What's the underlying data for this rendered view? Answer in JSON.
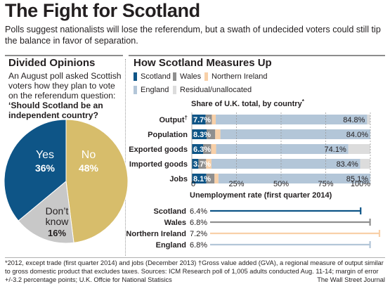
{
  "header": {
    "title": "The Fight for Scotland",
    "subtitle": "Polls suggest nationalists will lose the referendum, but a swath of undecided voters could still tip the balance in favor of separation."
  },
  "left_panel": {
    "heading": "Divided Opinions",
    "intro": "An August poll asked Scottish voters how they plan to vote on the referendum question:",
    "question": "‘Should Scotland be an independent country?",
    "slices": [
      {
        "label": "Yes",
        "value_label": "36%"
      },
      {
        "label": "No",
        "value_label": "48%"
      },
      {
        "label_line1": "Don’t",
        "label_line2": "know",
        "value_label": "16%"
      }
    ]
  },
  "right_panel": {
    "heading": "How Scotland Measures Up",
    "legend": [
      "Scotland",
      "Wales",
      "Northern Ireland",
      "England",
      "Residual/unallocated"
    ]
  },
  "chart_data": [
    {
      "type": "pie",
      "categories": [
        "Yes",
        "No",
        "Don't know"
      ],
      "values": [
        36,
        48,
        16
      ],
      "colors": [
        "#0e5587",
        "#d7bd6b",
        "#c8c8c8"
      ]
    },
    {
      "type": "bar",
      "stacked": true,
      "orientation": "horizontal",
      "title": "Share of U.K. total, by country*",
      "title_marker": "*",
      "categories": [
        "Output",
        "Population",
        "Exported goods",
        "Imported goods",
        "Jobs"
      ],
      "category_markers": [
        "†",
        "",
        "",
        "",
        ""
      ],
      "series": [
        {
          "name": "Scotland",
          "values": [
            7.7,
            8.3,
            6.3,
            3.7,
            8.1
          ],
          "labels": [
            "7.7%",
            "8.3%",
            "6.3%",
            "3.7%",
            "8.1%"
          ],
          "color": "#0e5587"
        },
        {
          "name": "Wales",
          "values": [
            3.5,
            4.8,
            4.5,
            4.3,
            4.6
          ],
          "color": "#8f8f8f"
        },
        {
          "name": "Northern Ireland",
          "values": [
            2.2,
            2.9,
            2.8,
            3.0,
            2.2
          ],
          "color": "#f8d0a8"
        },
        {
          "name": "England",
          "values": [
            84.8,
            84.0,
            74.1,
            83.4,
            85.1
          ],
          "labels": [
            "84.8%",
            "84.0%",
            "74.1%",
            "83.4%",
            "85.1%"
          ],
          "color": "#b3c6d8"
        },
        {
          "name": "Residual/unallocated",
          "values": [
            1.8,
            0.0,
            12.3,
            5.6,
            0.0
          ],
          "color": "#dcdcdc"
        }
      ],
      "xlim": [
        0,
        100
      ],
      "xticks": [
        "0",
        "25%",
        "50%",
        "75%",
        "100%"
      ],
      "grid": true,
      "legend": "top"
    },
    {
      "type": "bar",
      "orientation": "horizontal",
      "title": "Unemployment rate (first quarter 2014)",
      "categories": [
        "Scotland",
        "Wales",
        "Northern Ireland",
        "England"
      ],
      "values": [
        6.4,
        6.8,
        7.2,
        6.8
      ],
      "labels": [
        "6.4%",
        "6.8%",
        "7.2%",
        "6.8%"
      ],
      "colors": [
        "#0e5587",
        "#8f8f8f",
        "#f8d0a8",
        "#b3c6d8"
      ],
      "xlim": [
        0,
        7.2
      ]
    }
  ],
  "footer": {
    "note": "*2012, except trade (first quarter 2014) and jobs (December 2013)    †Gross value added (GVA), a regional measure of output similar to gross domestic product that excludes taxes.   Sources: ICM Research poll of 1,005 adults conducted Aug. 11-14; margin of error +/-3.2 percentage points; U.K. Offcie for National Statisics",
    "credit": "The Wall Street Journal"
  }
}
